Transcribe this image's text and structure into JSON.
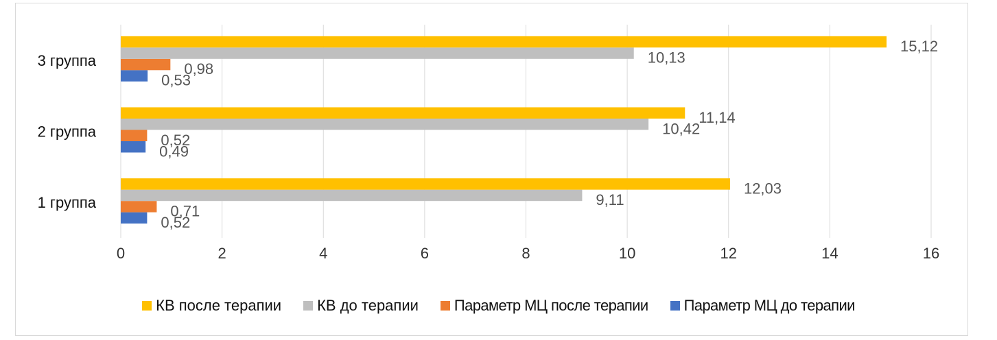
{
  "chart_data": {
    "type": "bar",
    "orientation": "horizontal",
    "categories": [
      "1 группа",
      "2 группа",
      "3 группа"
    ],
    "series": [
      {
        "name": "Параметр МЦ до терапии",
        "color": "#4472C4",
        "values": [
          0.52,
          0.49,
          0.53
        ],
        "labels": [
          "0,52",
          "0,49",
          "0,53"
        ]
      },
      {
        "name": "Параметр МЦ после терапии",
        "color": "#ED7D31",
        "values": [
          0.71,
          0.52,
          0.98
        ],
        "labels": [
          "0,71",
          "0,52",
          "0,98"
        ]
      },
      {
        "name": "КВ до терапии",
        "color": "#BFBFBF",
        "values": [
          9.11,
          10.42,
          10.13
        ],
        "labels": [
          "9,11",
          "10,42",
          "10,13"
        ]
      },
      {
        "name": "КВ после терапии",
        "color": "#FFC000",
        "values": [
          12.03,
          11.14,
          15.12
        ],
        "labels": [
          "12,03",
          "11,14",
          "15,12"
        ]
      }
    ],
    "xlim": [
      0,
      16
    ],
    "xticks": [
      "0",
      "2",
      "4",
      "6",
      "8",
      "10",
      "12",
      "14",
      "16"
    ],
    "grid": true,
    "legend_position": "bottom",
    "legend_order": [
      "КВ после терапии",
      "КВ до терапии",
      "Параметр МЦ после терапии",
      "Параметр МЦ до терапии"
    ]
  }
}
